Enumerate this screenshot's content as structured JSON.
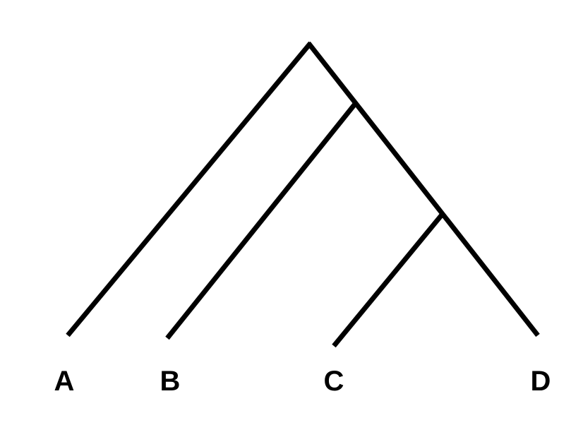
{
  "diagram": {
    "type": "cladogram",
    "taxa": [
      "A",
      "B",
      "C",
      "D"
    ],
    "topology": "(A,(B,(C,D)))",
    "line_color": "#000000",
    "label_color": "#000000"
  }
}
